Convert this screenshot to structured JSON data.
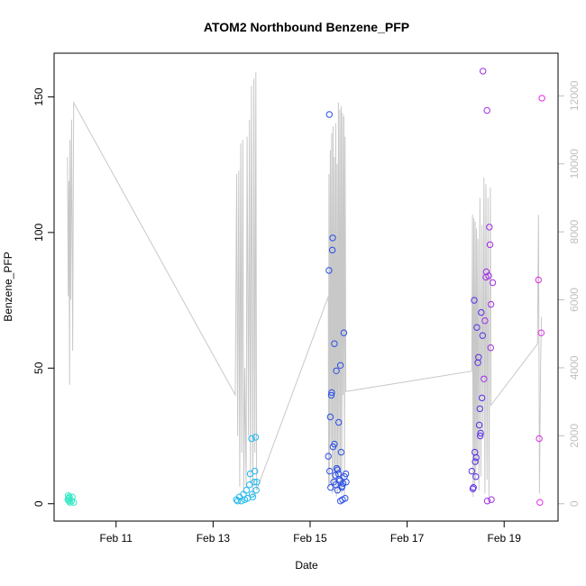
{
  "chart_data": {
    "type": "scatter",
    "title": "ATOM2 Northbound Benzene_PFP",
    "xlabel": "Date",
    "ylabel": "Benzene_PFP",
    "x_ticks": [
      "Feb 11",
      "Feb 13",
      "Feb 15",
      "Feb 17",
      "Feb 19"
    ],
    "y_ticks": [
      "0",
      "50",
      "100",
      "150"
    ],
    "y2_ticks": [
      "0",
      "2000",
      "4000",
      "6000",
      "8000",
      "10000",
      "12000"
    ],
    "xlim": [
      "2016-02-09T17:20",
      "2016-02-20T02:40"
    ],
    "ylim": [
      -6.4,
      166.1
    ],
    "y2lim": [
      -510,
      13255
    ],
    "grid": false,
    "colors": {
      "line": "#c8c8c8",
      "frame": "#000000",
      "right_axis": "#bfbfbf"
    },
    "point_series": [
      {
        "color": "#2ee8c4",
        "points": [
          [
            "2016-02-10T00:10",
            1.5
          ],
          [
            "2016-02-10T00:20",
            3.0
          ],
          [
            "2016-02-10T00:30",
            2.0
          ],
          [
            "2016-02-10T00:40",
            1.0
          ],
          [
            "2016-02-10T00:55",
            2.5
          ],
          [
            "2016-02-10T01:10",
            0.5
          ],
          [
            "2016-02-10T02:00",
            1.0
          ],
          [
            "2016-02-10T02:20",
            2.5
          ],
          [
            "2016-02-10T03:00",
            0.5
          ]
        ]
      },
      {
        "color": "#22b8ec",
        "points": [
          [
            "2016-02-13T11:30",
            1.5
          ],
          [
            "2016-02-13T12:10",
            1.0
          ],
          [
            "2016-02-13T13:00",
            2.5
          ],
          [
            "2016-02-13T14:00",
            1.0
          ],
          [
            "2016-02-13T15:00",
            3.5
          ],
          [
            "2016-02-13T15:40",
            1.5
          ],
          [
            "2016-02-13T16:30",
            5.0
          ],
          [
            "2016-02-13T17:00",
            2.0
          ],
          [
            "2016-02-13T18:00",
            7.0
          ],
          [
            "2016-02-13T18:20",
            11.0
          ],
          [
            "2016-02-13T19:00",
            24.0
          ],
          [
            "2016-02-13T19:20",
            3.5
          ],
          [
            "2016-02-13T19:40",
            2.5
          ],
          [
            "2016-02-13T20:20",
            8.0
          ],
          [
            "2016-02-13T20:40",
            12.0
          ],
          [
            "2016-02-13T21:00",
            24.5
          ],
          [
            "2016-02-13T21:20",
            5.0
          ],
          [
            "2016-02-13T21:40",
            8.0
          ]
        ]
      },
      {
        "color": "#2b4fe6",
        "points": [
          [
            "2016-02-15T09:00",
            17.5
          ],
          [
            "2016-02-15T09:30",
            143.5
          ],
          [
            "2016-02-15T09:20",
            86.0
          ],
          [
            "2016-02-15T10:00",
            32.0
          ],
          [
            "2016-02-15T10:30",
            40.0
          ],
          [
            "2016-02-15T10:40",
            41.0
          ],
          [
            "2016-02-15T11:00",
            93.5
          ],
          [
            "2016-02-15T11:10",
            98.0
          ],
          [
            "2016-02-15T11:20",
            21.0
          ],
          [
            "2016-02-15T12:00",
            59.0
          ],
          [
            "2016-02-15T12:00",
            22.0
          ],
          [
            "2016-02-15T13:00",
            49.0
          ],
          [
            "2016-02-15T09:40",
            12.0
          ],
          [
            "2016-02-15T10:10",
            6.0
          ],
          [
            "2016-02-15T11:40",
            8.0
          ],
          [
            "2016-02-15T12:30",
            10.5
          ],
          [
            "2016-02-15T13:10",
            13.0
          ],
          [
            "2016-02-15T13:30",
            5.0
          ],
          [
            "2016-02-15T14:00",
            11.0
          ],
          [
            "2016-02-15T14:10",
            30.0
          ],
          [
            "2016-02-15T14:40",
            8.5
          ],
          [
            "2016-02-15T15:00",
            1.0
          ],
          [
            "2016-02-15T15:00",
            51.0
          ],
          [
            "2016-02-15T15:20",
            19.0
          ],
          [
            "2016-02-15T15:40",
            6.0
          ],
          [
            "2016-02-15T16:00",
            1.5
          ],
          [
            "2016-02-15T16:20",
            7.5
          ],
          [
            "2016-02-15T16:40",
            63.0
          ],
          [
            "2016-02-15T17:00",
            10.0
          ],
          [
            "2016-02-15T17:20",
            2.0
          ],
          [
            "2016-02-15T17:40",
            11.0
          ],
          [
            "2016-02-15T17:50",
            8.0
          ],
          [
            "2016-02-15T12:40",
            7.0
          ],
          [
            "2016-02-15T13:40",
            12.5
          ],
          [
            "2016-02-15T14:20",
            9.0
          ],
          [
            "2016-02-15T15:50",
            6.5
          ]
        ]
      },
      {
        "color": "#5a2ee6",
        "points": [
          [
            "2016-02-18T08:00",
            12.0
          ],
          [
            "2016-02-18T08:30",
            5.5
          ],
          [
            "2016-02-18T08:50",
            6.0
          ],
          [
            "2016-02-18T09:10",
            75.0
          ],
          [
            "2016-02-18T09:30",
            19.0
          ],
          [
            "2016-02-18T09:40",
            15.5
          ],
          [
            "2016-02-18T10:00",
            10.0
          ],
          [
            "2016-02-18T10:10",
            17.0
          ],
          [
            "2016-02-18T10:30",
            65.0
          ],
          [
            "2016-02-18T11:00",
            52.0
          ],
          [
            "2016-02-18T11:20",
            54.0
          ],
          [
            "2016-02-18T11:40",
            29.0
          ],
          [
            "2016-02-18T12:00",
            35.0
          ],
          [
            "2016-02-18T12:10",
            25.0
          ],
          [
            "2016-02-18T12:20",
            26.0
          ],
          [
            "2016-02-18T12:40",
            70.5
          ],
          [
            "2016-02-18T13:00",
            39.0
          ],
          [
            "2016-02-18T13:20",
            62.0
          ]
        ]
      },
      {
        "color": "#a12ee6",
        "points": [
          [
            "2016-02-18T13:30",
            159.5
          ],
          [
            "2016-02-18T14:00",
            46.0
          ],
          [
            "2016-02-18T14:30",
            67.5
          ],
          [
            "2016-02-18T15:00",
            83.5
          ],
          [
            "2016-02-18T15:10",
            85.5
          ],
          [
            "2016-02-18T15:30",
            145.0
          ],
          [
            "2016-02-18T15:40",
            1.0
          ],
          [
            "2016-02-18T16:20",
            84.0
          ],
          [
            "2016-02-18T16:40",
            102.0
          ],
          [
            "2016-02-18T17:00",
            95.5
          ],
          [
            "2016-02-18T17:20",
            57.5
          ],
          [
            "2016-02-18T17:30",
            73.5
          ],
          [
            "2016-02-18T17:40",
            1.5
          ],
          [
            "2016-02-18T18:20",
            81.5
          ]
        ]
      },
      {
        "color": "#de2ee6",
        "points": [
          [
            "2016-02-19T17:00",
            82.5
          ],
          [
            "2016-02-19T17:20",
            24.0
          ],
          [
            "2016-02-19T17:40",
            0.5
          ],
          [
            "2016-02-19T18:20",
            63.0
          ],
          [
            "2016-02-19T18:40",
            149.5
          ]
        ]
      }
    ],
    "line_series": {
      "axis": "right",
      "points": [
        [
          "2016-02-10T00:00",
          10200
        ],
        [
          "2016-02-10T00:20",
          6100
        ],
        [
          "2016-02-10T00:40",
          9500
        ],
        [
          "2016-02-10T01:00",
          3500
        ],
        [
          "2016-02-10T01:10",
          10700
        ],
        [
          "2016-02-10T01:30",
          6000
        ],
        [
          "2016-02-10T02:00",
          11300
        ],
        [
          "2016-02-10T02:30",
          4500
        ],
        [
          "2016-02-10T03:00",
          11800
        ],
        [
          "2016-02-13T11:00",
          3200
        ],
        [
          "2016-02-13T11:40",
          9700
        ],
        [
          "2016-02-13T12:10",
          2000
        ],
        [
          "2016-02-13T12:40",
          9800
        ],
        [
          "2016-02-13T13:10",
          500
        ],
        [
          "2016-02-13T13:40",
          10600
        ],
        [
          "2016-02-13T14:10",
          1500
        ],
        [
          "2016-02-13T14:40",
          10700
        ],
        [
          "2016-02-13T15:10",
          300
        ],
        [
          "2016-02-13T15:40",
          4000
        ],
        [
          "2016-02-13T16:20",
          500
        ],
        [
          "2016-02-13T16:50",
          10800
        ],
        [
          "2016-02-13T17:30",
          2000
        ],
        [
          "2016-02-13T18:00",
          11300
        ],
        [
          "2016-02-13T18:30",
          600
        ],
        [
          "2016-02-13T19:00",
          12300
        ],
        [
          "2016-02-13T19:40",
          200
        ],
        [
          "2016-02-13T20:10",
          12500
        ],
        [
          "2016-02-13T20:40",
          1500
        ],
        [
          "2016-02-13T21:10",
          12700
        ],
        [
          "2016-02-13T21:30",
          400
        ],
        [
          "2016-02-15T09:00",
          6100
        ],
        [
          "2016-02-15T09:10",
          500
        ],
        [
          "2016-02-15T09:20",
          9700
        ],
        [
          "2016-02-15T09:40",
          500
        ],
        [
          "2016-02-15T10:00",
          10400
        ],
        [
          "2016-02-15T10:20",
          1800
        ],
        [
          "2016-02-15T10:40",
          10900
        ],
        [
          "2016-02-15T11:00",
          300
        ],
        [
          "2016-02-15T11:20",
          11100
        ],
        [
          "2016-02-15T11:40",
          400
        ],
        [
          "2016-02-15T12:00",
          10200
        ],
        [
          "2016-02-15T12:20",
          900
        ],
        [
          "2016-02-15T12:40",
          11200
        ],
        [
          "2016-02-15T13:00",
          200
        ],
        [
          "2016-02-15T13:20",
          10000
        ],
        [
          "2016-02-15T13:40",
          300
        ],
        [
          "2016-02-15T14:00",
          11800
        ],
        [
          "2016-02-15T14:20",
          1000
        ],
        [
          "2016-02-15T14:40",
          11600
        ],
        [
          "2016-02-15T15:00",
          400
        ],
        [
          "2016-02-15T15:20",
          11700
        ],
        [
          "2016-02-15T15:40",
          300
        ],
        [
          "2016-02-15T16:00",
          11500
        ],
        [
          "2016-02-15T16:20",
          3200
        ],
        [
          "2016-02-15T16:40",
          11400
        ],
        [
          "2016-02-15T17:00",
          200
        ],
        [
          "2016-02-15T17:20",
          10800
        ],
        [
          "2016-02-15T17:40",
          3300
        ],
        [
          "2016-02-18T08:00",
          3900
        ],
        [
          "2016-02-18T08:20",
          8500
        ],
        [
          "2016-02-18T08:40",
          200
        ],
        [
          "2016-02-18T09:00",
          8400
        ],
        [
          "2016-02-18T09:20",
          500
        ],
        [
          "2016-02-18T09:40",
          8300
        ],
        [
          "2016-02-18T10:00",
          700
        ],
        [
          "2016-02-18T10:20",
          8100
        ],
        [
          "2016-02-18T10:40",
          1200
        ],
        [
          "2016-02-18T11:00",
          7800
        ],
        [
          "2016-02-18T11:30",
          400
        ],
        [
          "2016-02-18T12:00",
          9000
        ],
        [
          "2016-02-18T12:30",
          800
        ],
        [
          "2016-02-18T13:00",
          8200
        ],
        [
          "2016-02-18T13:30",
          2000
        ],
        [
          "2016-02-18T14:00",
          9600
        ],
        [
          "2016-02-18T14:30",
          300
        ],
        [
          "2016-02-18T15:00",
          9400
        ],
        [
          "2016-02-18T15:30",
          700
        ],
        [
          "2016-02-18T16:00",
          9000
        ],
        [
          "2016-02-18T16:30",
          200
        ],
        [
          "2016-02-18T17:10",
          9300
        ],
        [
          "2016-02-18T17:30",
          2900
        ],
        [
          "2016-02-19T16:30",
          4700
        ],
        [
          "2016-02-19T17:00",
          8500
        ],
        [
          "2016-02-19T17:30",
          300
        ],
        [
          "2016-02-19T18:00",
          4000
        ],
        [
          "2016-02-19T18:30",
          5500
        ]
      ]
    }
  }
}
